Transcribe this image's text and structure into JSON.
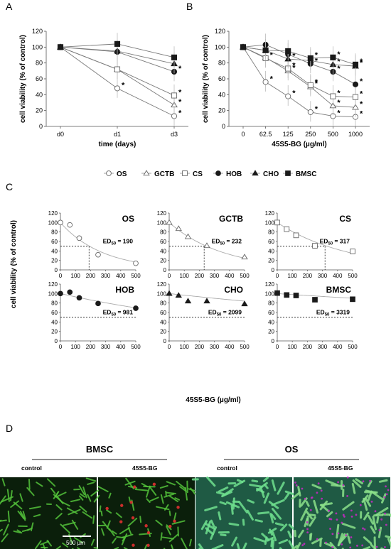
{
  "panel_labels": {
    "a": "A",
    "b": "B",
    "c": "C",
    "d": "D"
  },
  "colors": {
    "ink": "#1a1a1a",
    "grid": "#555555",
    "micro_bg": "#0b1f0b"
  },
  "legend": [
    "OS",
    "GCTB",
    "CS",
    "HOB",
    "CHO",
    "BMSC"
  ],
  "chart_data": [
    {
      "id": "A",
      "type": "line",
      "xlabel": "time (days)",
      "ylabel": "cell viability (% of control)",
      "categories": [
        "d0",
        "d1",
        "d3"
      ],
      "ylim": [
        0,
        120
      ],
      "yticks": [
        0,
        20,
        40,
        60,
        80,
        100,
        120
      ],
      "series": [
        {
          "name": "OS",
          "marker": "circle-open",
          "values": [
            100,
            48,
            13
          ],
          "stars": [
            false,
            true,
            true
          ]
        },
        {
          "name": "GCTB",
          "marker": "triangle-open",
          "values": [
            100,
            72,
            27
          ],
          "stars": [
            false,
            false,
            true
          ]
        },
        {
          "name": "CS",
          "marker": "square-open",
          "values": [
            100,
            72,
            39
          ],
          "stars": [
            false,
            false,
            true
          ]
        },
        {
          "name": "HOB",
          "marker": "circle-filled",
          "values": [
            100,
            94,
            69
          ],
          "stars": [
            false,
            false,
            true
          ]
        },
        {
          "name": "CHO",
          "marker": "triangle-filled",
          "values": [
            100,
            95,
            79
          ],
          "stars": [
            false,
            false,
            false
          ]
        },
        {
          "name": "BMSC",
          "marker": "square-filled",
          "values": [
            100,
            104,
            87
          ],
          "stars": [
            false,
            false,
            false
          ]
        }
      ]
    },
    {
      "id": "B",
      "type": "line",
      "xlabel": "45S5-BG (µg/ml)",
      "ylabel": "cell viability (% of control)",
      "categories": [
        "0",
        "62.5",
        "125",
        "250",
        "500",
        "1000"
      ],
      "ylim": [
        0,
        120
      ],
      "yticks": [
        0,
        20,
        40,
        60,
        80,
        100,
        120
      ],
      "series": [
        {
          "name": "OS",
          "marker": "circle-open",
          "values": [
            100,
            56,
            38,
            18,
            13,
            12
          ],
          "stars": [
            false,
            true,
            true,
            true,
            true,
            true
          ]
        },
        {
          "name": "GCTB",
          "marker": "triangle-open",
          "values": [
            100,
            87,
            70,
            50,
            26,
            24
          ],
          "stars": [
            false,
            false,
            true,
            true,
            true,
            true
          ]
        },
        {
          "name": "CS",
          "marker": "square-open",
          "values": [
            100,
            86,
            73,
            52,
            38,
            37
          ],
          "stars": [
            false,
            true,
            true,
            true,
            true,
            true
          ]
        },
        {
          "name": "HOB",
          "marker": "circle-filled",
          "values": [
            100,
            103,
            91,
            79,
            69,
            53
          ],
          "stars": [
            false,
            false,
            false,
            true,
            true,
            true
          ]
        },
        {
          "name": "CHO",
          "marker": "triangle-filled",
          "values": [
            100,
            96,
            85,
            83,
            78,
            76
          ],
          "stars": [
            false,
            false,
            true,
            false,
            true,
            true
          ]
        },
        {
          "name": "BMSC",
          "marker": "square-filled",
          "values": [
            100,
            96,
            95,
            86,
            87,
            78
          ],
          "stars": [
            false,
            false,
            false,
            true,
            true,
            true
          ]
        }
      ]
    },
    {
      "id": "C-OS",
      "type": "scatter",
      "title": "OS",
      "marker": "circle-open",
      "x": [
        0,
        62.5,
        125,
        250,
        500
      ],
      "values": [
        100,
        95,
        67,
        32,
        14
      ],
      "ed50_label": "ED",
      "ed50_sub": "50",
      "ed50_text": " = 190",
      "ed50": 190,
      "fit_k": 0.0036,
      "xlim": [
        0,
        500
      ],
      "ylim": [
        0,
        120
      ],
      "xticks": [
        0,
        100,
        200,
        300,
        400,
        500
      ],
      "yticks": [
        0,
        20,
        40,
        60,
        80,
        100,
        120
      ]
    },
    {
      "id": "C-GCTB",
      "type": "scatter",
      "title": "GCTB",
      "marker": "triangle-open",
      "x": [
        0,
        62.5,
        125,
        250,
        500
      ],
      "values": [
        100,
        87,
        70,
        51,
        27
      ],
      "ed50_label": "ED",
      "ed50_sub": "50",
      "ed50_text": " = 232",
      "ed50": 232,
      "fit_k": 0.0028,
      "xlim": [
        0,
        500
      ],
      "ylim": [
        0,
        120
      ],
      "xticks": [
        0,
        100,
        200,
        300,
        400,
        500
      ],
      "yticks": [
        0,
        20,
        40,
        60,
        80,
        100,
        120
      ]
    },
    {
      "id": "C-CS",
      "type": "scatter",
      "title": "CS",
      "marker": "square-open",
      "x": [
        0,
        62.5,
        125,
        250,
        500
      ],
      "values": [
        100,
        86,
        73,
        51,
        39
      ],
      "ed50_label": "ED",
      "ed50_sub": "50",
      "ed50_text": " = 317",
      "ed50": 317,
      "fit_k": 0.0021,
      "xlim": [
        0,
        500
      ],
      "ylim": [
        0,
        120
      ],
      "xticks": [
        0,
        100,
        200,
        300,
        400,
        500
      ],
      "yticks": [
        0,
        20,
        40,
        60,
        80,
        100,
        120
      ]
    },
    {
      "id": "C-HOB",
      "type": "scatter",
      "title": "HOB",
      "marker": "circle-filled",
      "x": [
        0,
        62.5,
        125,
        250,
        500
      ],
      "values": [
        100,
        103,
        91,
        79,
        69
      ],
      "ed50_label": "ED",
      "ed50_sub": "50",
      "ed50_text": " = 981",
      "ed50": 981,
      "fit_k": 0.00072,
      "xlim": [
        0,
        500
      ],
      "ylim": [
        0,
        120
      ],
      "xticks": [
        0,
        100,
        200,
        300,
        400,
        500
      ],
      "yticks": [
        0,
        20,
        40,
        60,
        80,
        100,
        120
      ]
    },
    {
      "id": "C-CHO",
      "type": "scatter",
      "title": "CHO",
      "marker": "triangle-filled",
      "x": [
        0,
        62.5,
        125,
        250,
        500
      ],
      "values": [
        100,
        96,
        84,
        84,
        78
      ],
      "ed50_label": "ED",
      "ed50_sub": "50",
      "ed50_text": " = 2099",
      "ed50": 2099,
      "fit_k": 0.00035,
      "xlim": [
        0,
        500
      ],
      "ylim": [
        0,
        120
      ],
      "xticks": [
        0,
        100,
        200,
        300,
        400,
        500
      ],
      "yticks": [
        0,
        20,
        40,
        60,
        80,
        100,
        120
      ]
    },
    {
      "id": "C-BMSC",
      "type": "scatter",
      "title": "BMSC",
      "marker": "square-filled",
      "x": [
        0,
        62.5,
        125,
        250,
        500
      ],
      "values": [
        101,
        97,
        96,
        87,
        88
      ],
      "ed50_label": "ED",
      "ed50_sub": "50",
      "ed50_text": " = 3319",
      "ed50": 3319,
      "fit_k": 0.00021,
      "xlim": [
        0,
        500
      ],
      "ylim": [
        0,
        120
      ],
      "xticks": [
        0,
        100,
        200,
        300,
        400,
        500
      ],
      "yticks": [
        0,
        20,
        40,
        60,
        80,
        100,
        120
      ]
    }
  ],
  "panel_c": {
    "ylabel": "cell viability (% of control)",
    "xlabel": "45S5-BG (µg/ml)"
  },
  "panel_d": {
    "groups": [
      {
        "title": "BMSC",
        "images": [
          {
            "label": "control"
          },
          {
            "label": "45S5-BG"
          }
        ]
      },
      {
        "title": "OS",
        "images": [
          {
            "label": "control"
          },
          {
            "label": "45S5-BG"
          }
        ]
      }
    ],
    "scale_bar": "500 µm"
  }
}
